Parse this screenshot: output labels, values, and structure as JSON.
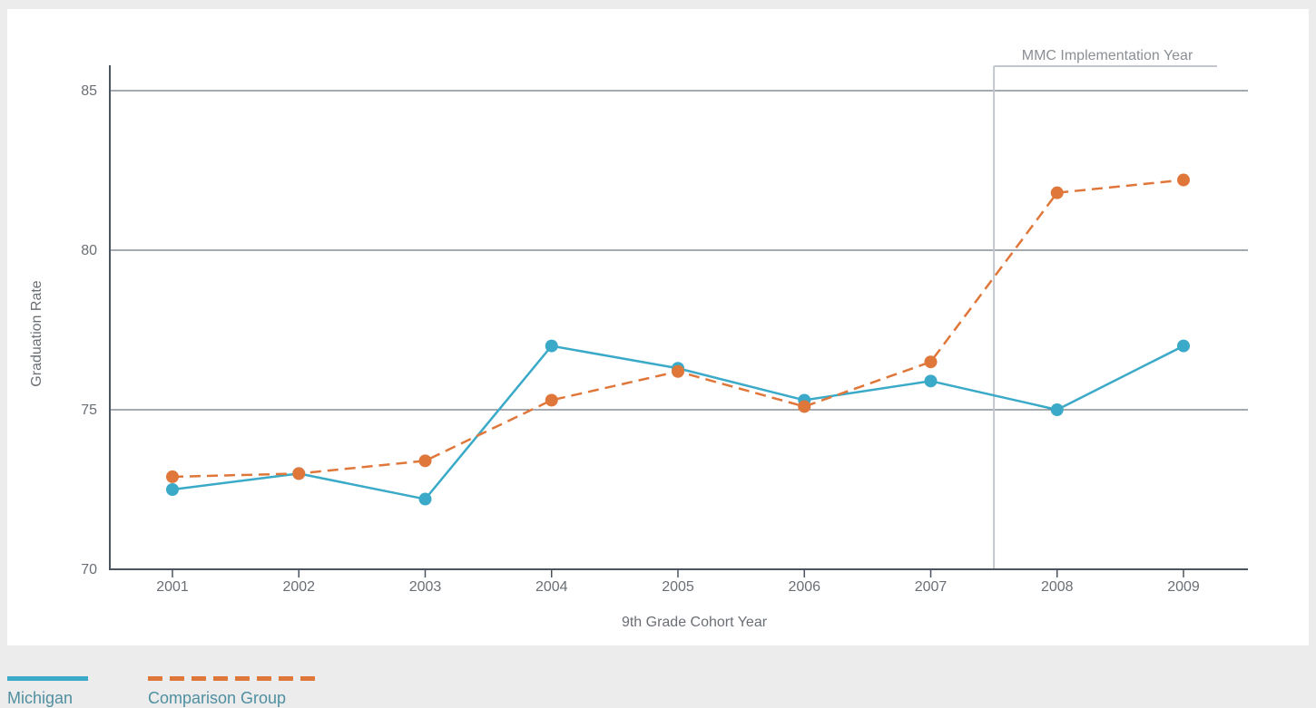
{
  "chart_data": {
    "type": "line",
    "title": "",
    "xlabel": "9th Grade Cohort Year",
    "ylabel": "Graduation Rate",
    "ylim": [
      70,
      85
    ],
    "yticks": [
      70,
      75,
      80,
      85
    ],
    "categories": [
      "2001",
      "2002",
      "2003",
      "2004",
      "2005",
      "2006",
      "2007",
      "2008",
      "2009"
    ],
    "grid": true,
    "legend_position": "bottom-left",
    "series": [
      {
        "name": "Michigan",
        "color": "#3aaac8",
        "style": "solid",
        "values": [
          72.5,
          73.0,
          72.2,
          77.0,
          76.3,
          75.3,
          75.9,
          75.0,
          77.0
        ]
      },
      {
        "name": "Comparison Group",
        "color": "#e0773a",
        "style": "dashed",
        "values": [
          72.9,
          73.0,
          73.4,
          75.3,
          76.2,
          75.1,
          76.5,
          81.8,
          82.2
        ]
      }
    ],
    "annotations": [
      {
        "label": "MMC Implementation Year",
        "between": [
          "2007",
          "2008"
        ]
      }
    ]
  }
}
